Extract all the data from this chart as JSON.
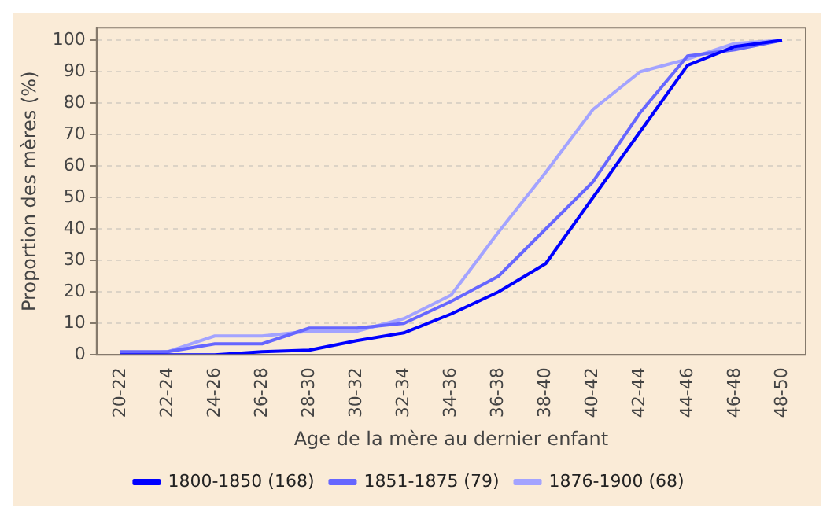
{
  "chart_data": {
    "type": "line",
    "xlabel": "Age de la mère au dernier enfant",
    "ylabel": "Proportion des mères (%)",
    "categories": [
      "20-22",
      "22-24",
      "24-26",
      "26-28",
      "28-30",
      "30-32",
      "32-34",
      "34-36",
      "36-38",
      "38-40",
      "40-42",
      "42-44",
      "44-46",
      "46-48",
      "48-50"
    ],
    "series": [
      {
        "name": "1800-1850 (168)",
        "color": "#0000ff",
        "values": [
          0,
          0,
          0,
          1,
          1.5,
          4.5,
          7,
          13,
          20,
          29,
          50,
          71,
          92,
          98,
          100
        ]
      },
      {
        "name": "1851-1875 (79)",
        "color": "#6666ff",
        "values": [
          1,
          1,
          3.5,
          3.5,
          8.5,
          8.5,
          10,
          17,
          25,
          40,
          55,
          77,
          95,
          97,
          100
        ]
      },
      {
        "name": "1876-1900 (68)",
        "color": "#a3a3ff",
        "values": [
          0,
          1,
          6,
          6,
          7.5,
          7.5,
          11.5,
          19,
          39,
          58,
          78,
          90,
          94,
          99,
          100
        ]
      }
    ],
    "ylim": [
      0,
      104
    ],
    "yticks": [
      0,
      10,
      20,
      30,
      40,
      50,
      60,
      70,
      80,
      90,
      100
    ],
    "grid": "y",
    "legend": "bottom",
    "marker": "none",
    "line_style": "solid"
  }
}
